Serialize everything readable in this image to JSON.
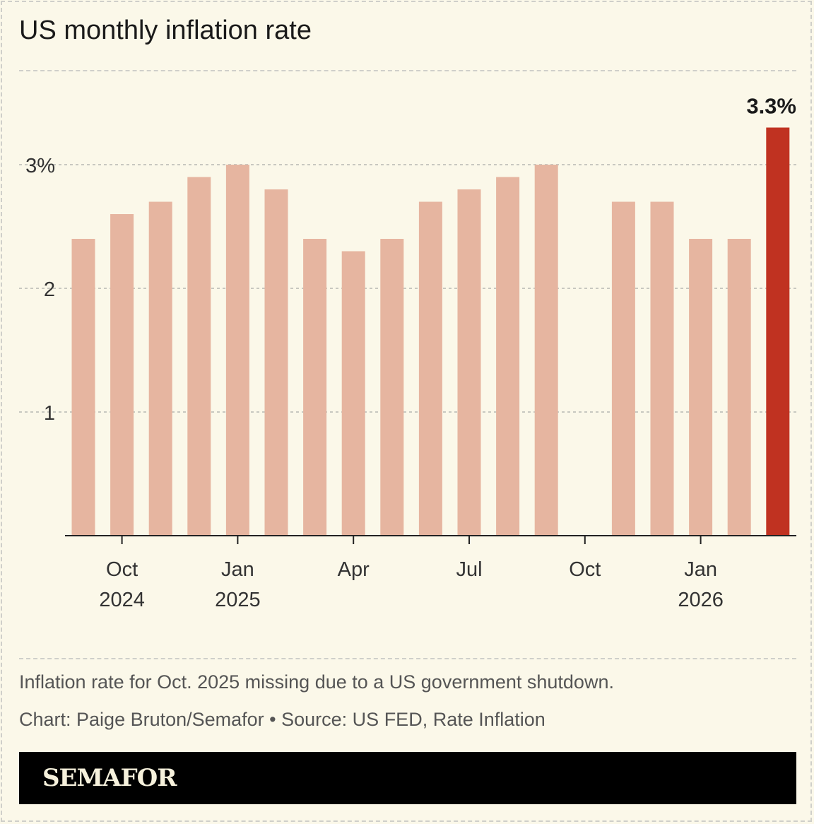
{
  "title": "US monthly inflation rate",
  "note": "Inflation rate for Oct. 2025 missing due to a US government shutdown.",
  "credit": "Chart: Paige Bruton/Semafor • Source: US FED, Rate Inflation",
  "brand": "SEMAFOR",
  "colors": {
    "bar": "#e6b5a0",
    "highlight": "#c03221",
    "background": "#fbf8e9"
  },
  "chart_data": {
    "type": "bar",
    "title": "US monthly inflation rate",
    "categories": [
      "Sep 2024",
      "Oct 2024",
      "Nov 2024",
      "Dec 2024",
      "Jan 2025",
      "Feb 2025",
      "Mar 2025",
      "Apr 2025",
      "May 2025",
      "Jun 2025",
      "Jul 2025",
      "Aug 2025",
      "Sep 2025",
      "Oct 2025",
      "Nov 2025",
      "Dec 2025",
      "Jan 2026",
      "Feb 2026",
      "Mar 2026"
    ],
    "values": [
      2.4,
      2.6,
      2.7,
      2.9,
      3.0,
      2.8,
      2.4,
      2.3,
      2.4,
      2.7,
      2.8,
      2.9,
      3.0,
      null,
      2.7,
      2.7,
      2.4,
      2.4,
      3.3
    ],
    "highlight_index": 18,
    "highlight_label": "3.3%",
    "ylim": [
      0,
      3.5
    ],
    "yticks": [
      {
        "value": 1,
        "label": "1"
      },
      {
        "value": 2,
        "label": "2"
      },
      {
        "value": 3,
        "label": "3%"
      }
    ],
    "xticks": [
      {
        "index": 1,
        "line1": "Oct",
        "line2": "2024"
      },
      {
        "index": 4,
        "line1": "Jan",
        "line2": "2025"
      },
      {
        "index": 7,
        "line1": "Apr",
        "line2": ""
      },
      {
        "index": 10,
        "line1": "Jul",
        "line2": ""
      },
      {
        "index": 13,
        "line1": "Oct",
        "line2": ""
      },
      {
        "index": 16,
        "line1": "Jan",
        "line2": "2026"
      }
    ],
    "grid": true,
    "xlabel": "",
    "ylabel": ""
  }
}
